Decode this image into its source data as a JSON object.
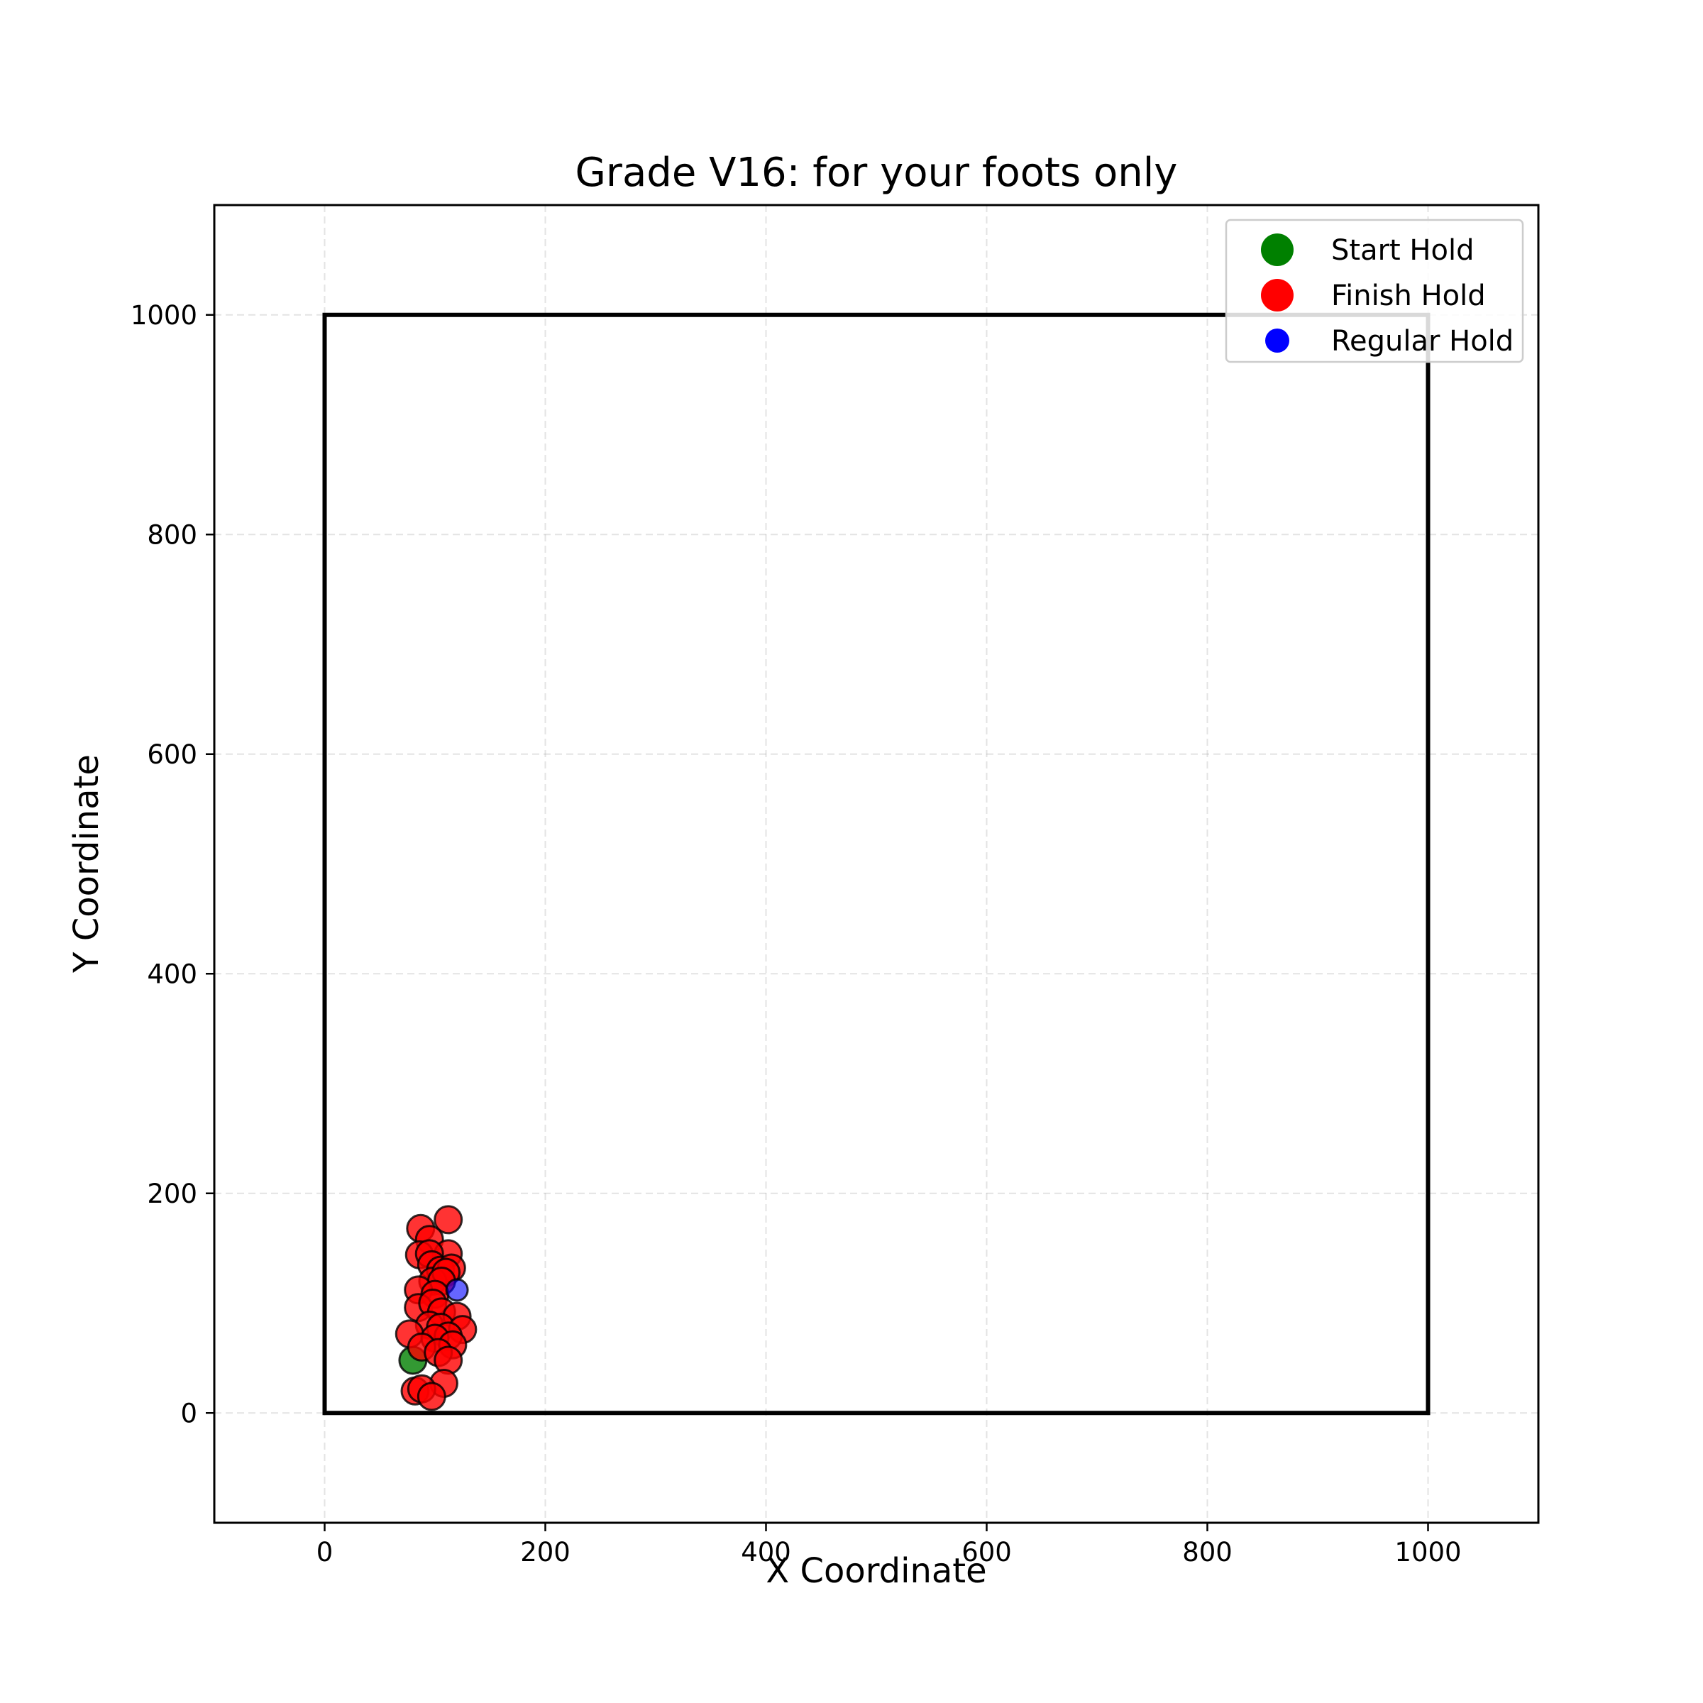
{
  "chart_data": {
    "type": "scatter",
    "title": "Grade V16: for your foots only",
    "xlabel": "X Coordinate",
    "ylabel": "Y Coordinate",
    "xlim": [
      -100,
      1100
    ],
    "ylim": [
      -100,
      1100
    ],
    "xticks": [
      0,
      200,
      400,
      600,
      800,
      1000
    ],
    "yticks": [
      0,
      200,
      400,
      600,
      800,
      1000
    ],
    "grid": true,
    "legend_position": "top-right",
    "wall_outline": {
      "x": [
        0,
        1000
      ],
      "y": [
        0,
        1000
      ]
    },
    "series": [
      {
        "name": "Start Hold",
        "color": "#008000",
        "points": [
          [
            80,
            48
          ]
        ]
      },
      {
        "name": "Finish Hold",
        "color": "#ff0000",
        "points": [
          [
            87,
            168
          ],
          [
            112,
            176
          ],
          [
            95,
            158
          ],
          [
            86,
            144
          ],
          [
            112,
            145
          ],
          [
            95,
            145
          ],
          [
            97,
            135
          ],
          [
            105,
            130
          ],
          [
            115,
            132
          ],
          [
            98,
            120
          ],
          [
            110,
            128
          ],
          [
            106,
            120
          ],
          [
            85,
            112
          ],
          [
            100,
            108
          ],
          [
            85,
            96
          ],
          [
            98,
            100
          ],
          [
            106,
            92
          ],
          [
            120,
            88
          ],
          [
            95,
            80
          ],
          [
            105,
            78
          ],
          [
            125,
            76
          ],
          [
            77,
            72
          ],
          [
            112,
            70
          ],
          [
            100,
            68
          ],
          [
            88,
            60
          ],
          [
            116,
            62
          ],
          [
            103,
            55
          ],
          [
            112,
            48
          ],
          [
            108,
            27
          ],
          [
            82,
            20
          ],
          [
            88,
            22
          ],
          [
            97,
            15
          ]
        ]
      },
      {
        "name": "Regular Hold",
        "color": "#0000ff",
        "points": [
          [
            120,
            112
          ]
        ]
      }
    ]
  }
}
